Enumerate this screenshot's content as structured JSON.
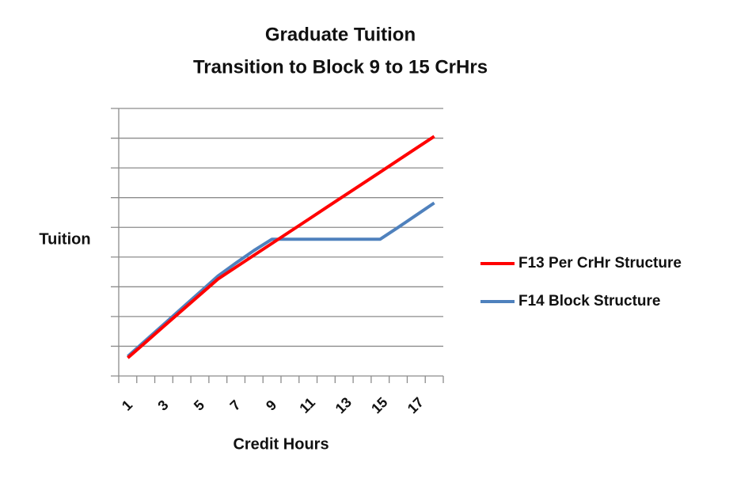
{
  "chart_data": {
    "type": "line",
    "title": "Graduate Tuition",
    "subtitle": "Transition to Block 9 to 15 CrHrs",
    "y_label": "Tuition",
    "x_label": "Credit Hours",
    "categories": [
      "1",
      null,
      "3",
      null,
      "5",
      null,
      "7",
      null,
      "9",
      null,
      "11",
      null,
      "13",
      null,
      "15",
      null,
      "17",
      null
    ],
    "series": [
      {
        "name": "F13 Per CrHr Structure",
        "color": "#ff0000",
        "values": [
          0.61,
          1.14,
          1.67,
          2.2,
          2.73,
          3.26,
          3.66,
          4.06,
          4.46,
          4.86,
          5.26,
          5.66,
          6.06,
          6.46,
          6.86,
          7.26,
          7.66,
          8.06
        ]
      },
      {
        "name": "F14 Block Structure",
        "color": "#4f81bd",
        "values": [
          0.66,
          1.2,
          1.74,
          2.28,
          2.82,
          3.36,
          3.8,
          4.22,
          4.6,
          4.6,
          4.6,
          4.6,
          4.6,
          4.6,
          4.6,
          5.0,
          5.41,
          5.82
        ]
      }
    ],
    "ylim": [
      0,
      9
    ],
    "yticks": [
      0,
      1,
      2,
      3,
      4,
      5,
      6,
      7,
      8,
      9
    ],
    "ytick_labels": false,
    "grid": true,
    "legend": "right"
  }
}
